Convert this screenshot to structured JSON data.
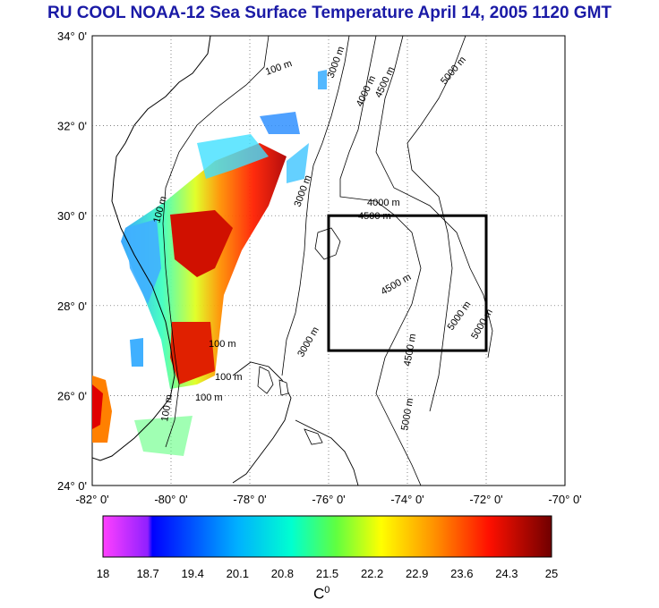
{
  "title": "RU COOL  NOAA-12 Sea Surface Temperature April 14, 2005 1120 GMT",
  "map": {
    "lon_range": [
      -82,
      -70
    ],
    "lat_range": [
      24,
      34
    ],
    "lon_ticks": [
      "-82° 0'",
      "-80° 0'",
      "-78° 0'",
      "-76° 0'",
      "-74° 0'",
      "-72° 0'",
      "-70° 0'"
    ],
    "lat_ticks": [
      "24° 0'",
      "26° 0'",
      "28° 0'",
      "30° 0'",
      "32° 0'",
      "34° 0'"
    ],
    "grid": true,
    "study_box": {
      "lon": [
        -76,
        -72
      ],
      "lat": [
        27,
        30
      ]
    }
  },
  "contour_labels": [
    "100 m",
    "3000 m",
    "4000 m",
    "4500 m",
    "5000 m"
  ],
  "colorbar": {
    "ticks": [
      "18",
      "18.7",
      "19.4",
      "20.1",
      "20.8",
      "21.5",
      "22.2",
      "22.9",
      "23.6",
      "24.3",
      "25"
    ],
    "range": [
      18,
      25
    ],
    "unit": "C",
    "unit_sup": "0",
    "colors": [
      "#ff00ff",
      "#0000ff",
      "#00ffff",
      "#00ff00",
      "#ffff00",
      "#ff8000",
      "#ff0000",
      "#800000"
    ]
  }
}
